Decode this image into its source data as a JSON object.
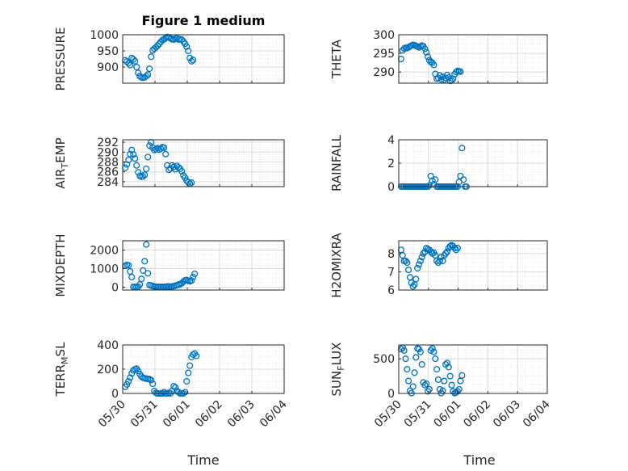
{
  "figure_title": "Figure 1 medium",
  "x_axis_label": "Time",
  "marker_color": "#0072bd",
  "chart_data": [
    {
      "type": "scatter",
      "ylabel": "PRESSURE",
      "ylim": [
        850,
        1000
      ],
      "yticks": [
        "1000",
        "950",
        "900"
      ],
      "ytick_values": [
        1000,
        950,
        900
      ],
      "xlim": [
        0,
        5
      ],
      "xticks": [
        "05/30",
        "05/31",
        "06/01",
        "06/02",
        "06/03",
        "06/04"
      ],
      "x_start": 0.08,
      "x_step": 0.05,
      "values": [
        921,
        917,
        912,
        906,
        928,
        924,
        918,
        900,
        882,
        872,
        868,
        867,
        868,
        872,
        877,
        895,
        932,
        952,
        957,
        961,
        966,
        972,
        978,
        983,
        986,
        990,
        993,
        992,
        989,
        986,
        985,
        988,
        990,
        985,
        986,
        985,
        979,
        972,
        963,
        950,
        928,
        918,
        922
      ]
    },
    {
      "type": "scatter",
      "ylabel": "THETA",
      "ylim": [
        287,
        300
      ],
      "yticks": [
        "300",
        "295",
        "290"
      ],
      "ytick_values": [
        300,
        295,
        290
      ],
      "xlim": [
        0,
        5
      ],
      "xticks": [
        "05/30",
        "05/31",
        "06/01",
        "06/02",
        "06/03",
        "06/04"
      ],
      "x_start": 0.08,
      "x_step": 0.05,
      "values": [
        293.5,
        295.8,
        296.3,
        296.5,
        296.4,
        296.6,
        296.9,
        297.1,
        297.3,
        297.2,
        297.0,
        296.8,
        296.6,
        296.9,
        297.1,
        296.9,
        296.2,
        295.3,
        294.1,
        293.2,
        292.7,
        292.5,
        291.9,
        289.5,
        288.2,
        288.4,
        289.1,
        288.0,
        288.7,
        287.9,
        288.4,
        289.2,
        288.5,
        287.6,
        287.8,
        288.2,
        289.4,
        290.0,
        290.3,
        290.2,
        290.1
      ]
    },
    {
      "type": "scatter",
      "ylabel": "AIR_TEMP",
      "ylim": [
        283,
        292.5
      ],
      "yticks": [
        "292",
        "290",
        "288",
        "286",
        "284"
      ],
      "ytick_values": [
        292,
        290,
        288,
        286,
        284
      ],
      "xlim": [
        0,
        5
      ],
      "xticks": [
        "05/30",
        "05/31",
        "06/01",
        "06/02",
        "06/03",
        "06/04"
      ],
      "x_start": 0.08,
      "x_step": 0.05,
      "values": [
        286.8,
        287.5,
        288.4,
        289.6,
        290.4,
        289.5,
        288.7,
        287.3,
        285.9,
        285.2,
        285.0,
        285.1,
        285.4,
        286.6,
        289.0,
        291.3,
        292.0,
        290.9,
        290.4,
        290.6,
        290.8,
        290.5,
        290.7,
        291.0,
        290.9,
        289.6,
        287.3,
        286.4,
        286.7,
        287.3,
        287.0,
        286.5,
        287.2,
        286.9,
        286.6,
        286.1,
        285.3,
        284.8,
        284.2,
        283.9,
        283.6,
        283.8
      ]
    },
    {
      "type": "scatter",
      "ylabel": "RAINFALL",
      "ylim": [
        0,
        4
      ],
      "yticks": [
        "4",
        "2",
        "0"
      ],
      "ytick_values": [
        4,
        2,
        0
      ],
      "xlim": [
        0,
        5
      ],
      "xticks": [
        "05/30",
        "05/31",
        "06/01",
        "06/02",
        "06/03",
        "06/04"
      ],
      "x_start": 0.08,
      "x_step": 0.05,
      "values": [
        0,
        0,
        0,
        0,
        0,
        0,
        0,
        0,
        0,
        0,
        0,
        0,
        0,
        0,
        0,
        0,
        0,
        0,
        0,
        0.1,
        0.9,
        0.5,
        0.2,
        0.6,
        0,
        0,
        0,
        0,
        0,
        0,
        0,
        0,
        0,
        0,
        0,
        0,
        0,
        0,
        0,
        0.4,
        0.9,
        3.3,
        0.6,
        0,
        0
      ]
    },
    {
      "type": "scatter",
      "ylabel": "MIXDEPTH",
      "ylim": [
        -150,
        2500
      ],
      "yticks": [
        "2000",
        "1000",
        "0"
      ],
      "ytick_values": [
        2000,
        1000,
        0
      ],
      "xlim": [
        0,
        5
      ],
      "xticks": [
        "05/30",
        "05/31",
        "06/01",
        "06/02",
        "06/03",
        "06/04"
      ],
      "x_start": 0.08,
      "x_step": 0.05,
      "values": [
        1150,
        1200,
        1180,
        850,
        550,
        20,
        10,
        15,
        30,
        150,
        450,
        900,
        1400,
        2300,
        750,
        120,
        90,
        60,
        40,
        30,
        25,
        20,
        18,
        20,
        25,
        30,
        40,
        35,
        30,
        45,
        60,
        80,
        110,
        140,
        170,
        210,
        300,
        370,
        390,
        350,
        320,
        360,
        550,
        720
      ]
    },
    {
      "type": "scatter",
      "ylabel": "H2OMIXRA",
      "ylim": [
        6,
        8.7
      ],
      "yticks": [
        "8",
        "7",
        "6"
      ],
      "ytick_values": [
        8,
        7,
        6
      ],
      "xlim": [
        0,
        5
      ],
      "xticks": [
        "05/30",
        "05/31",
        "06/01",
        "06/02",
        "06/03",
        "06/04"
      ],
      "x_start": 0.08,
      "x_step": 0.05,
      "values": [
        8.2,
        7.9,
        7.6,
        7.6,
        7.5,
        7.1,
        6.7,
        6.4,
        6.2,
        6.3,
        6.6,
        7.2,
        7.4,
        7.6,
        7.8,
        8.0,
        8.1,
        8.3,
        8.25,
        8.2,
        8.1,
        8.0,
        8.05,
        7.9,
        7.6,
        7.5,
        7.6,
        7.8,
        7.6,
        7.9,
        8.0,
        8.1,
        8.3,
        8.4,
        8.45,
        8.4,
        8.3,
        8.2,
        8.3
      ]
    },
    {
      "type": "scatter",
      "ylabel": "TERR_MSL",
      "ylim": [
        0,
        400
      ],
      "yticks": [
        "400",
        "200",
        "0"
      ],
      "ytick_values": [
        400,
        200,
        0
      ],
      "xlim": [
        0,
        5
      ],
      "xticks": [
        "05/30",
        "05/31",
        "06/01",
        "06/02",
        "06/03",
        "06/04"
      ],
      "x_start": 0.08,
      "x_step": 0.05,
      "values": [
        55,
        75,
        100,
        130,
        165,
        190,
        200,
        205,
        185,
        160,
        140,
        130,
        125,
        122,
        120,
        118,
        110,
        80,
        20,
        5,
        0,
        0,
        0,
        0,
        10,
        0,
        0,
        5,
        0,
        20,
        60,
        50,
        20,
        10,
        0,
        0,
        0,
        10,
        100,
        170,
        230,
        300,
        320,
        330,
        310
      ]
    },
    {
      "type": "scatter",
      "ylabel": "SUN_FLUX",
      "ylim": [
        0,
        700
      ],
      "yticks": [
        "500",
        "0"
      ],
      "ytick_values": [
        500,
        0
      ],
      "xlim": [
        0,
        5
      ],
      "xticks": [
        "05/30",
        "05/31",
        "06/01",
        "06/02",
        "06/03",
        "06/04"
      ],
      "x_start": 0.08,
      "x_step": 0.05,
      "values": [
        640,
        660,
        620,
        500,
        350,
        180,
        40,
        5,
        100,
        300,
        520,
        650,
        640,
        600,
        420,
        160,
        120,
        140,
        30,
        60,
        620,
        650,
        600,
        500,
        350,
        200,
        60,
        5,
        40,
        180,
        420,
        440,
        380,
        250,
        120,
        30,
        5,
        15,
        30,
        60,
        180,
        260
      ]
    }
  ]
}
